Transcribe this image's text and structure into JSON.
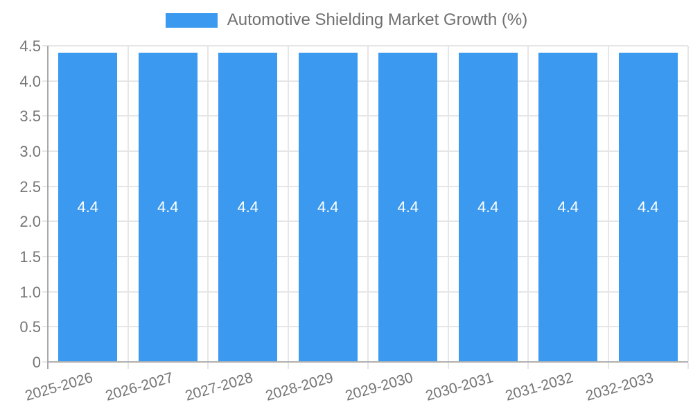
{
  "chart_data": {
    "type": "bar",
    "title": "Automotive Shielding Market Growth (%)",
    "legend": {
      "label": "Automotive Shielding Market Growth (%)",
      "position": "top",
      "swatch_color": "#3b99ef"
    },
    "categories": [
      "2025-2026",
      "2026-2027",
      "2027-2028",
      "2028-2029",
      "2029-2030",
      "2030-2031",
      "2031-2032",
      "2032-2033"
    ],
    "values": [
      4.4,
      4.4,
      4.4,
      4.4,
      4.4,
      4.4,
      4.4,
      4.4
    ],
    "value_labels": [
      "4.4",
      "4.4",
      "4.4",
      "4.4",
      "4.4",
      "4.4",
      "4.4",
      "4.4"
    ],
    "xlabel": "",
    "ylabel": "",
    "ylim": [
      0,
      4.5
    ],
    "yticks": [
      {
        "value": 0,
        "label": "0"
      },
      {
        "value": 0.5,
        "label": "0.5"
      },
      {
        "value": 1.0,
        "label": "1.0"
      },
      {
        "value": 1.5,
        "label": "1.5"
      },
      {
        "value": 2.0,
        "label": "2.0"
      },
      {
        "value": 2.5,
        "label": "2.5"
      },
      {
        "value": 3.0,
        "label": "3.0"
      },
      {
        "value": 3.5,
        "label": "3.5"
      },
      {
        "value": 4.0,
        "label": "4.0"
      },
      {
        "value": 4.5,
        "label": "4.5"
      }
    ],
    "grid": true,
    "colors": {
      "bar": "#3b99ef",
      "grid": "#e6e6e6",
      "x_axis": "#b0b0b0",
      "y_axis": "#a8a8a8",
      "tick_text": "#757575",
      "legend_text": "#707070",
      "bar_label_text": "#ffffff",
      "background": "#ffffff"
    }
  }
}
